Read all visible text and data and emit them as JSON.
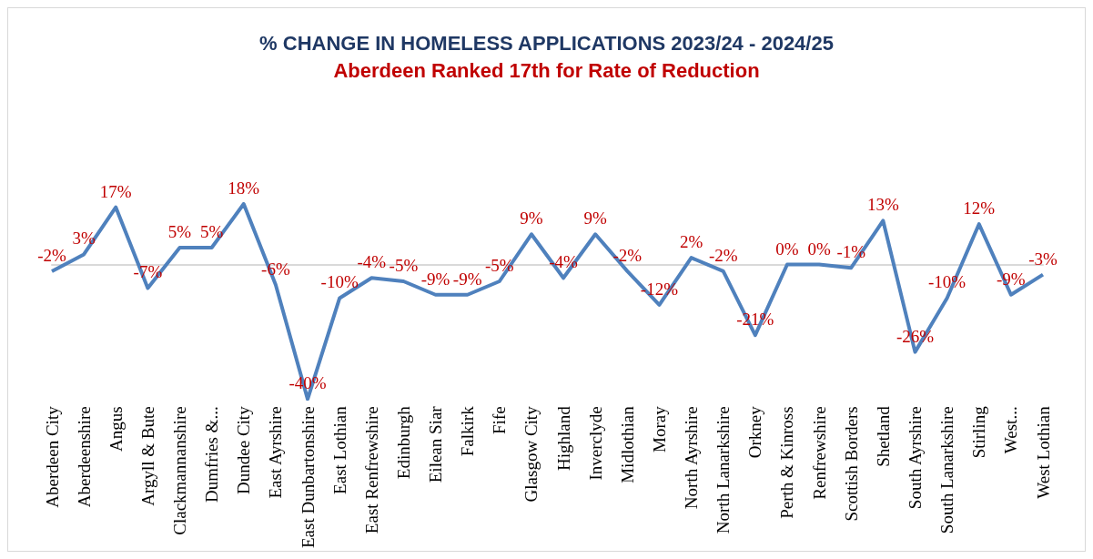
{
  "chart_data": {
    "type": "line",
    "title": "% CHANGE IN HOMELESS APPLICATIONS 2023/24 - 2024/25",
    "subtitle": "Aberdeen Ranked 17th for Rate of Reduction",
    "categories": [
      "Aberdeen City",
      "Aberdeenshire",
      "Angus",
      "Argyll & Bute",
      "Clackmannanshire",
      "Dumfries &...",
      "Dundee City",
      "East Ayrshire",
      "East Dunbartonshire",
      "East Lothian",
      "East Renfrewshire",
      "Edinburgh",
      "Eilean Siar",
      "Falkirk",
      "Fife",
      "Glasgow City",
      "Highland",
      "Inverclyde",
      "Midlothian",
      "Moray",
      "North Ayrshire",
      "North Lanarkshire",
      "Orkney",
      "Perth & Kinross",
      "Renfrewshire",
      "Scottish Borders",
      "Shetland",
      "South Ayrshire",
      "South Lanarkshire",
      "Stirling",
      "West...",
      "West Lothian"
    ],
    "series": [
      {
        "color": "#4f81bd",
        "values": [
          -2,
          3,
          17,
          -7,
          5,
          5,
          18,
          -6,
          -40,
          -10,
          -4,
          -5,
          -9,
          -9,
          -5,
          9,
          -4,
          9,
          -2,
          -12,
          2,
          -2,
          -21,
          0,
          0,
          -1,
          13,
          -26,
          -10,
          12,
          -9,
          -3
        ],
        "value_labels": [
          "-2%",
          "3%",
          "17%",
          "-7%",
          "5%",
          "5%",
          "18%",
          "-6%",
          "-40%",
          "-10%",
          "-4%",
          "-5%",
          "-9%",
          "-9%",
          "-5%",
          "9%",
          "-4%",
          "9%",
          "-2%",
          "-12%",
          "2%",
          "-2%",
          "-21%",
          "0%",
          "0%",
          "-1%",
          "13%",
          "-26%",
          "-10%",
          "12%",
          "-9%",
          "-3%"
        ]
      }
    ],
    "marker": "none",
    "line_style": "solid",
    "grid": false
  }
}
